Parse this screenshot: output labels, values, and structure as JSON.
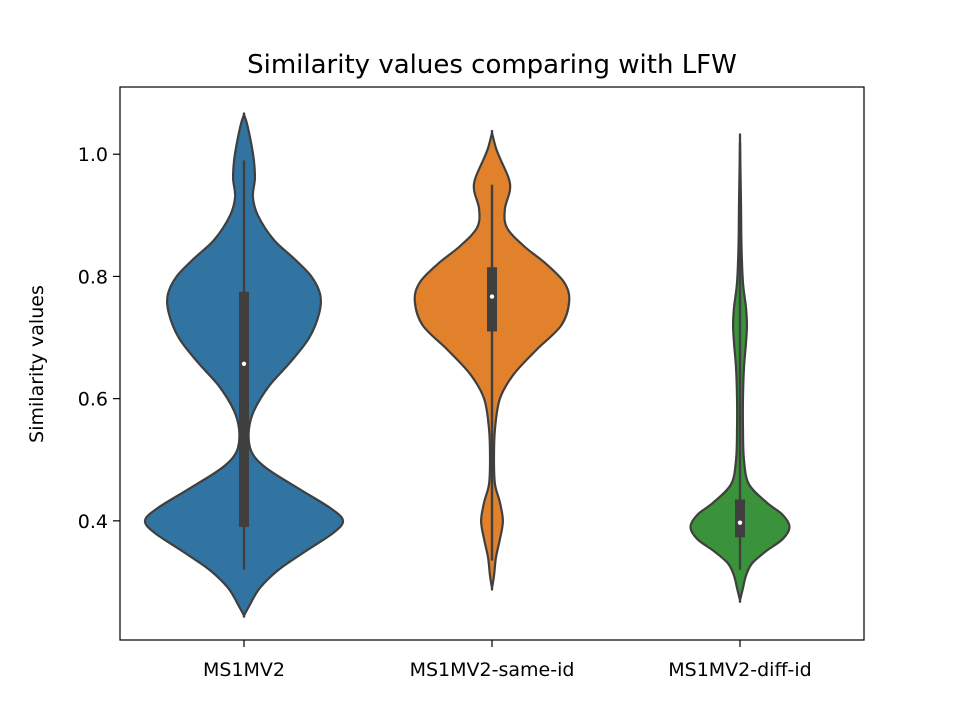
{
  "chart_data": {
    "type": "violin",
    "title": "Similarity values comparing with LFW",
    "xlabel": "",
    "ylabel": "Similarity values",
    "ylim": [
      0.205,
      1.11
    ],
    "yticks": [
      0.4,
      0.6,
      0.8,
      1.0
    ],
    "ytick_labels": [
      "0.4",
      "0.6",
      "0.8",
      "1.0"
    ],
    "grid": false,
    "categories": [
      "MS1MV2",
      "MS1MV2-same-id",
      "MS1MV2-diff-id"
    ],
    "series": [
      {
        "name": "MS1MV2",
        "color": "#3274a1",
        "whisker_low": 0.32,
        "q1": 0.39,
        "median": 0.657,
        "q3": 0.775,
        "whisker_high": 0.99,
        "kde_extent": [
          0.245,
          1.065
        ],
        "density_profile": [
          [
            0.245,
            0.0
          ],
          [
            0.26,
            0.05
          ],
          [
            0.29,
            0.16
          ],
          [
            0.32,
            0.35
          ],
          [
            0.35,
            0.62
          ],
          [
            0.38,
            0.9
          ],
          [
            0.4,
            1.0
          ],
          [
            0.42,
            0.88
          ],
          [
            0.45,
            0.58
          ],
          [
            0.48,
            0.28
          ],
          [
            0.5,
            0.13
          ],
          [
            0.52,
            0.06
          ],
          [
            0.55,
            0.05
          ],
          [
            0.58,
            0.1
          ],
          [
            0.62,
            0.25
          ],
          [
            0.66,
            0.47
          ],
          [
            0.7,
            0.66
          ],
          [
            0.74,
            0.76
          ],
          [
            0.77,
            0.77
          ],
          [
            0.8,
            0.68
          ],
          [
            0.83,
            0.5
          ],
          [
            0.86,
            0.3
          ],
          [
            0.9,
            0.14
          ],
          [
            0.93,
            0.09
          ],
          [
            0.96,
            0.11
          ],
          [
            0.99,
            0.1
          ],
          [
            1.02,
            0.07
          ],
          [
            1.05,
            0.03
          ],
          [
            1.065,
            0.0
          ]
        ]
      },
      {
        "name": "MS1MV2-same-id",
        "color": "#e1812c",
        "whisker_low": 0.335,
        "q1": 0.71,
        "median": 0.767,
        "q3": 0.815,
        "whisker_high": 0.95,
        "kde_extent": [
          0.29,
          1.035
        ],
        "density_profile": [
          [
            0.29,
            0.0
          ],
          [
            0.31,
            0.02
          ],
          [
            0.34,
            0.04
          ],
          [
            0.37,
            0.08
          ],
          [
            0.4,
            0.11
          ],
          [
            0.43,
            0.08
          ],
          [
            0.46,
            0.03
          ],
          [
            0.5,
            0.02
          ],
          [
            0.55,
            0.03
          ],
          [
            0.6,
            0.08
          ],
          [
            0.64,
            0.22
          ],
          [
            0.68,
            0.45
          ],
          [
            0.72,
            0.7
          ],
          [
            0.76,
            0.78
          ],
          [
            0.79,
            0.73
          ],
          [
            0.82,
            0.55
          ],
          [
            0.85,
            0.32
          ],
          [
            0.88,
            0.15
          ],
          [
            0.91,
            0.13
          ],
          [
            0.94,
            0.18
          ],
          [
            0.96,
            0.17
          ],
          [
            0.99,
            0.09
          ],
          [
            1.01,
            0.04
          ],
          [
            1.035,
            0.0
          ]
        ]
      },
      {
        "name": "MS1MV2-diff-id",
        "color": "#3a923a",
        "whisker_low": 0.32,
        "q1": 0.373,
        "median": 0.397,
        "q3": 0.435,
        "whisker_high": 1.02,
        "kde_extent": [
          0.27,
          1.02
        ],
        "density_profile": [
          [
            0.27,
            0.0
          ],
          [
            0.29,
            0.03
          ],
          [
            0.31,
            0.06
          ],
          [
            0.33,
            0.12
          ],
          [
            0.35,
            0.26
          ],
          [
            0.37,
            0.43
          ],
          [
            0.39,
            0.5
          ],
          [
            0.41,
            0.43
          ],
          [
            0.43,
            0.27
          ],
          [
            0.46,
            0.09
          ],
          [
            0.5,
            0.04
          ],
          [
            0.55,
            0.03
          ],
          [
            0.6,
            0.03
          ],
          [
            0.65,
            0.04
          ],
          [
            0.69,
            0.06
          ],
          [
            0.72,
            0.07
          ],
          [
            0.75,
            0.06
          ],
          [
            0.79,
            0.03
          ],
          [
            0.85,
            0.015
          ],
          [
            0.92,
            0.01
          ],
          [
            1.02,
            0.0
          ]
        ]
      }
    ]
  }
}
